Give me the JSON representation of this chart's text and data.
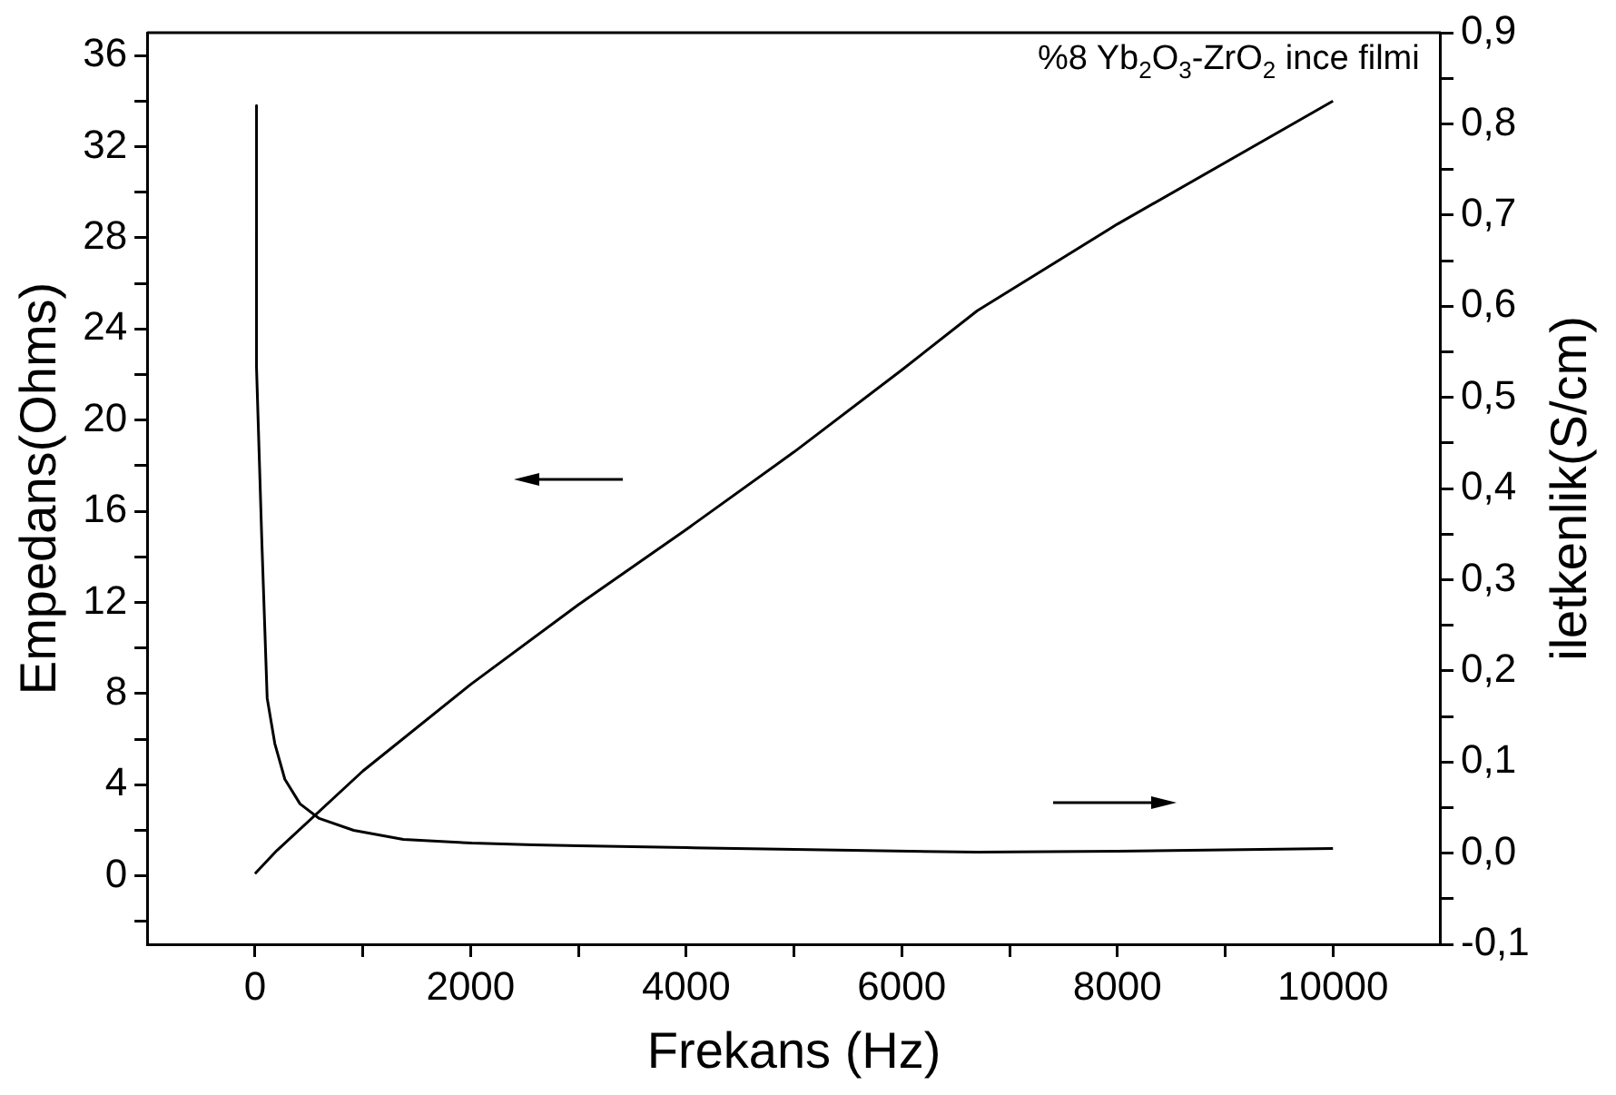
{
  "chart_data": {
    "type": "line",
    "xlabel": "Frekans (Hz)",
    "ylabel": "Empedans(Ohms)",
    "y2label": "iletkenlik(S/cm)",
    "annotations": [
      "%8 Yb$_{2}$O$_{3}$-ZrO$_{2}$ ince filmi"
    ],
    "xlim": [
      -1000,
      11000
    ],
    "xticks": [
      0,
      {
        "value": 1000,
        "label": null
      },
      2000,
      {
        "value": 3000,
        "label": null
      },
      4000,
      {
        "value": 5000,
        "label": null
      },
      6000,
      {
        "value": 7000,
        "label": null
      },
      8000,
      {
        "value": 9000,
        "label": null
      },
      10000
    ],
    "ylim": [
      -3,
      37
    ],
    "yticks": [
      {
        "value": -2,
        "label": null
      },
      0,
      {
        "value": 2,
        "label": null
      },
      4,
      {
        "value": 6,
        "label": null
      },
      8,
      {
        "value": 10,
        "label": null
      },
      12,
      {
        "value": 14,
        "label": null
      },
      16,
      {
        "value": 18,
        "label": null
      },
      20,
      {
        "value": 22,
        "label": null
      },
      24,
      {
        "value": 26,
        "label": null
      },
      28,
      {
        "value": 30,
        "label": null
      },
      32,
      {
        "value": 34,
        "label": null
      },
      36
    ],
    "y2lim": [
      -0.1,
      0.9
    ],
    "y2ticks": [
      {
        "value": -0.1,
        "label": "-0,1"
      },
      {
        "value": -0.05,
        "label": null
      },
      {
        "value": 0,
        "label": "0,0"
      },
      {
        "value": 0.05,
        "label": null
      },
      {
        "value": 0.1,
        "label": "0,1"
      },
      {
        "value": 0.15,
        "label": null
      },
      {
        "value": 0.2,
        "label": "0,2"
      },
      {
        "value": 0.25,
        "label": null
      },
      {
        "value": 0.3,
        "label": "0,3"
      },
      {
        "value": 0.35,
        "label": null
      },
      {
        "value": 0.4,
        "label": "0,4"
      },
      {
        "value": 0.45,
        "label": null
      },
      {
        "value": 0.5,
        "label": "0,5"
      },
      {
        "value": 0.55,
        "label": null
      },
      {
        "value": 0.6,
        "label": "0,6"
      },
      {
        "value": 0.65,
        "label": null
      },
      {
        "value": 0.7,
        "label": "0,7"
      },
      {
        "value": 0.75,
        "label": null
      },
      {
        "value": 0.8,
        "label": "0,8"
      },
      {
        "value": 0.85,
        "label": null
      },
      {
        "value": 0.9,
        "label": "0,9"
      }
    ],
    "grid": false,
    "legend": false,
    "marker": "none",
    "line_style": "solid",
    "series": [
      {
        "color": "#000000",
        "x": [
          0,
          200,
          1000,
          2000,
          3000,
          4000,
          5000,
          6000,
          6700,
          8000,
          10000
        ],
        "values": [
          0.1,
          1.1,
          4.6,
          8.4,
          11.9,
          15.2,
          18.6,
          22.2,
          24.8,
          28.6,
          34.0
        ]
      },
      {
        "color": "#000000",
        "axis": "y2",
        "x": [
          14,
          14,
          64,
          113,
          184,
          277,
          418,
          596,
          915,
          1376,
          2014,
          2582,
          3000,
          4000,
          5000,
          6700,
          8000,
          10000
        ],
        "values": [
          0.82,
          0.533,
          0.34,
          0.17,
          0.12,
          0.081,
          0.054,
          0.038,
          0.025,
          0.015,
          0.011,
          0.009,
          0.008,
          0.006,
          0.004,
          0.001,
          0.002,
          0.005
        ]
      }
    ]
  }
}
